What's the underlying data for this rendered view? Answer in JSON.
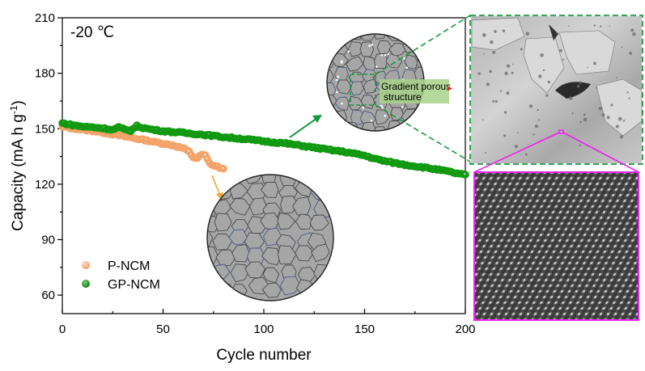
{
  "chart_data": {
    "type": "scatter",
    "title": "",
    "annotation": "-20 ℃",
    "xlabel": "Cycle number",
    "ylabel": "Capacity (mA h g",
    "ylabel_sup": "-1",
    "ylabel_close": ")",
    "xlim": [
      0,
      200
    ],
    "ylim": [
      50,
      210
    ],
    "xticks": [
      0,
      50,
      100,
      150,
      200
    ],
    "yticks": [
      60,
      90,
      120,
      150,
      180,
      210
    ],
    "grid": false,
    "legend_position": "bottom-left",
    "series": [
      {
        "name": "P-NCM",
        "color": "#f4a46a",
        "points": [
          [
            0,
            151
          ],
          [
            5,
            150.2
          ],
          [
            10,
            149.5
          ],
          [
            15,
            148.8
          ],
          [
            20,
            148.0
          ],
          [
            25,
            147.0
          ],
          [
            30,
            146.0
          ],
          [
            35,
            145.0
          ],
          [
            40,
            144.0
          ],
          [
            45,
            143.0
          ],
          [
            50,
            142.0
          ],
          [
            55,
            141.0
          ],
          [
            60,
            139.5
          ],
          [
            63,
            137.5
          ],
          [
            65,
            134.5
          ],
          [
            67,
            134.0
          ],
          [
            69,
            136.0
          ],
          [
            71,
            135.5
          ],
          [
            73,
            131.5
          ],
          [
            75,
            130.0
          ],
          [
            77,
            129.5
          ],
          [
            79,
            128.5
          ],
          [
            80,
            128.0
          ]
        ]
      },
      {
        "name": "GP-NCM",
        "color": "#119a11",
        "points": [
          [
            0,
            153
          ],
          [
            5,
            152
          ],
          [
            10,
            151.2
          ],
          [
            15,
            150.8
          ],
          [
            20,
            150.3
          ],
          [
            25,
            149.5
          ],
          [
            28,
            150.8
          ],
          [
            31,
            149.5
          ],
          [
            34,
            149.0
          ],
          [
            37,
            151.5
          ],
          [
            40,
            150.5
          ],
          [
            45,
            149.5
          ],
          [
            50,
            148.7
          ],
          [
            60,
            147.8
          ],
          [
            70,
            146.8
          ],
          [
            80,
            145.5
          ],
          [
            90,
            144.5
          ],
          [
            100,
            143.2
          ],
          [
            110,
            142.2
          ],
          [
            120,
            140.6
          ],
          [
            130,
            139.0
          ],
          [
            140,
            137.5
          ],
          [
            150,
            135.5
          ],
          [
            155,
            133.8
          ],
          [
            160,
            132.5
          ],
          [
            165,
            131.5
          ],
          [
            170,
            130.5
          ],
          [
            180,
            129.0
          ],
          [
            190,
            127.2
          ],
          [
            195,
            126.0
          ],
          [
            200,
            125.0
          ]
        ]
      }
    ]
  },
  "insets": {
    "porous_label_line1": "Gradient porous",
    "porous_label_line2": "structure",
    "colors": {
      "zoom_box_green": "#1a9a3f",
      "zoom_box_magenta": "#ee22ee",
      "arrow_green": "#16983f",
      "arrow_orange": "#f0a535",
      "particle_gray": "#a6a6a6"
    }
  }
}
